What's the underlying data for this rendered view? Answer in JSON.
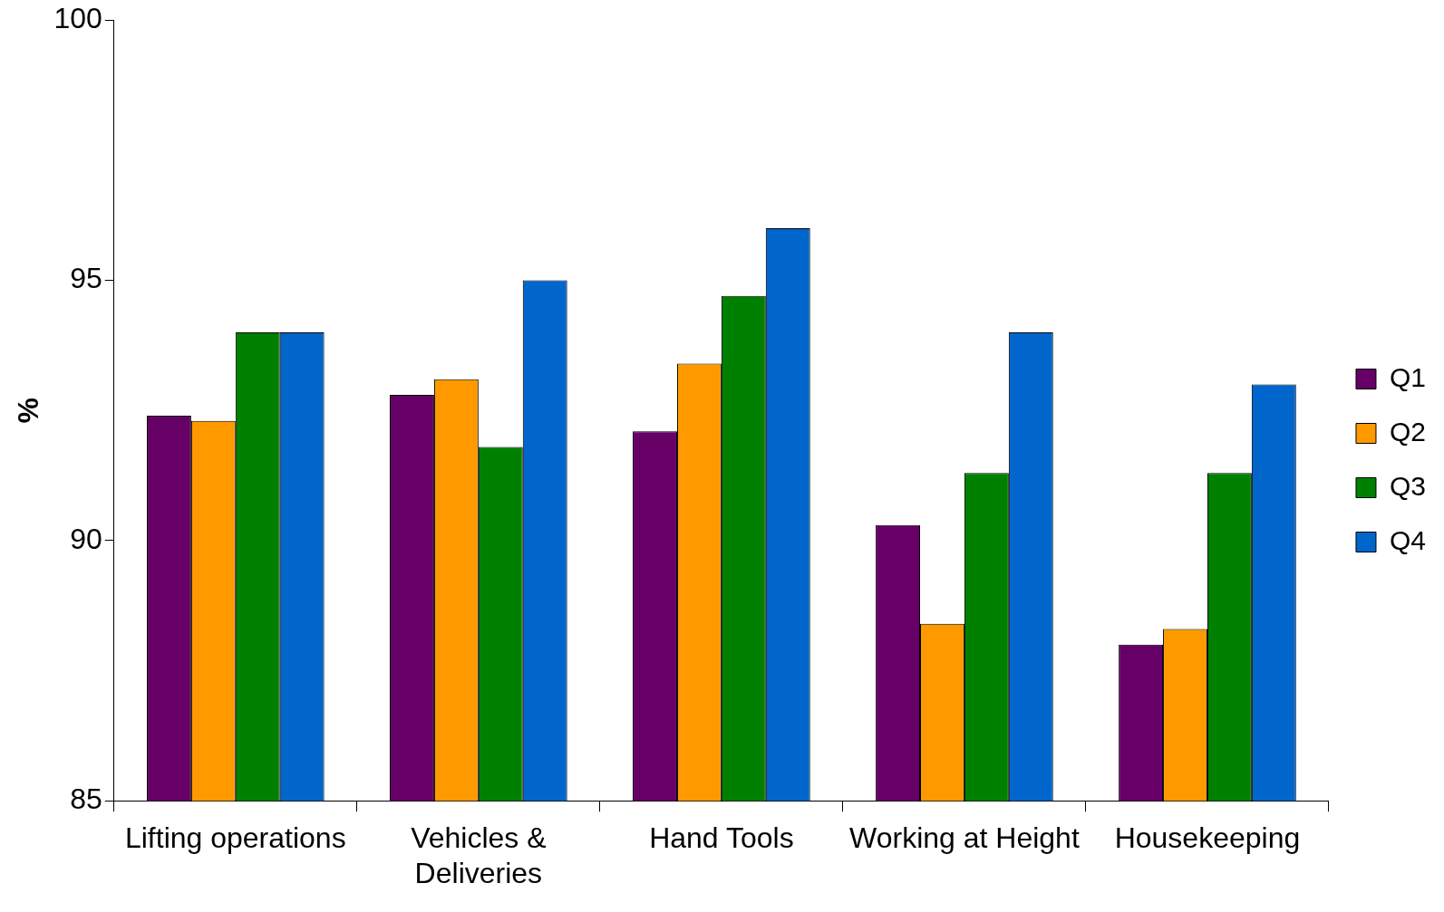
{
  "chart_data": {
    "type": "bar",
    "ylabel": "%",
    "categories": [
      "Lifting operations",
      "Vehicles & Deliveries",
      "Hand Tools",
      "Working at Height",
      "Housekeeping"
    ],
    "series": [
      {
        "name": "Q1",
        "color": "#660066",
        "values": [
          92.4,
          92.8,
          92.1,
          90.3,
          88.0
        ]
      },
      {
        "name": "Q2",
        "color": "#ff9900",
        "values": [
          92.3,
          93.1,
          93.4,
          88.4,
          88.3
        ]
      },
      {
        "name": "Q3",
        "color": "#008000",
        "values": [
          94.0,
          91.8,
          94.7,
          91.3,
          91.3
        ]
      },
      {
        "name": "Q4",
        "color": "#0066cc",
        "values": [
          94.0,
          95.0,
          96.0,
          94.0,
          93.0
        ]
      }
    ],
    "ylim": [
      85,
      100
    ],
    "yticks": [
      85,
      90,
      95,
      100
    ],
    "grid": false,
    "legend": "right"
  }
}
